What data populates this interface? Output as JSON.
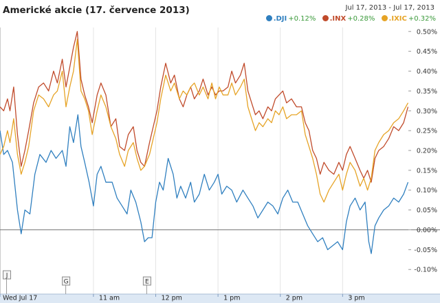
{
  "header": {
    "title": "Americké akcie (17. července 2013)",
    "date_range": "Jul 17, 2013  -  Jul 17, 2013"
  },
  "legend": [
    {
      "symbol": ".DJI",
      "change": "+0.12%",
      "color": "#2f7fbf",
      "icon": "dot-icon"
    },
    {
      "symbol": ".INX",
      "change": "+0.28%",
      "color": "#c04a2a",
      "icon": "dot-icon"
    },
    {
      "symbol": ".IXIC",
      "change": "+0.32%",
      "color": "#e6a325",
      "icon": "dot-icon"
    }
  ],
  "chart_data": {
    "type": "line",
    "title": "Americké akcie (17. července 2013)",
    "xlabel": "",
    "ylabel": "",
    "x_range": [
      9.5,
      16.1
    ],
    "ylim": [
      -0.11,
      0.51
    ],
    "y_ticks": [
      "0.50%",
      "0.45%",
      "0.40%",
      "0.35%",
      "0.30%",
      "0.25%",
      "0.20%",
      "0.15%",
      "0.10%",
      "0.05%",
      "0.00%",
      "-0.05%",
      "-0.10%"
    ],
    "y_tick_values": [
      0.5,
      0.45,
      0.4,
      0.35,
      0.3,
      0.25,
      0.2,
      0.15,
      0.1,
      0.05,
      0.0,
      -0.05,
      -0.1
    ],
    "x_ticks": [
      {
        "label": "Wed Jul 17",
        "x": 9.5
      },
      {
        "label": "11 am",
        "x": 11.0
      },
      {
        "label": "12 pm",
        "x": 12.0
      },
      {
        "label": "1 pm",
        "x": 13.0
      },
      {
        "label": "2 pm",
        "x": 14.0
      },
      {
        "label": "3 pm",
        "x": 15.0
      }
    ],
    "flags": [
      {
        "label": "J",
        "x": 9.55
      },
      {
        "label": "G",
        "x": 10.5
      },
      {
        "label": "E",
        "x": 11.8
      }
    ],
    "series": [
      {
        "name": ".DJI",
        "color": "#2f7fbf",
        "points": [
          [
            9.5,
            0.25
          ],
          [
            9.56,
            0.19
          ],
          [
            9.62,
            0.2
          ],
          [
            9.7,
            0.17
          ],
          [
            9.78,
            0.05
          ],
          [
            9.84,
            -0.01
          ],
          [
            9.9,
            0.05
          ],
          [
            9.98,
            0.04
          ],
          [
            10.06,
            0.14
          ],
          [
            10.14,
            0.19
          ],
          [
            10.24,
            0.17
          ],
          [
            10.32,
            0.2
          ],
          [
            10.4,
            0.18
          ],
          [
            10.5,
            0.2
          ],
          [
            10.56,
            0.16
          ],
          [
            10.62,
            0.26
          ],
          [
            10.68,
            0.22
          ],
          [
            10.75,
            0.29
          ],
          [
            10.8,
            0.21
          ],
          [
            10.86,
            0.17
          ],
          [
            10.93,
            0.12
          ],
          [
            11.0,
            0.06
          ],
          [
            11.06,
            0.14
          ],
          [
            11.12,
            0.16
          ],
          [
            11.2,
            0.12
          ],
          [
            11.3,
            0.12
          ],
          [
            11.38,
            0.08
          ],
          [
            11.46,
            0.06
          ],
          [
            11.54,
            0.04
          ],
          [
            11.6,
            0.1
          ],
          [
            11.68,
            0.07
          ],
          [
            11.76,
            0.02
          ],
          [
            11.82,
            -0.03
          ],
          [
            11.88,
            -0.02
          ],
          [
            11.94,
            -0.02
          ],
          [
            12.0,
            0.07
          ],
          [
            12.06,
            0.12
          ],
          [
            12.12,
            0.1
          ],
          [
            12.2,
            0.18
          ],
          [
            12.28,
            0.14
          ],
          [
            12.34,
            0.08
          ],
          [
            12.4,
            0.11
          ],
          [
            12.48,
            0.08
          ],
          [
            12.56,
            0.12
          ],
          [
            12.62,
            0.07
          ],
          [
            12.7,
            0.09
          ],
          [
            12.78,
            0.14
          ],
          [
            12.86,
            0.1
          ],
          [
            12.94,
            0.12
          ],
          [
            13.0,
            0.14
          ],
          [
            13.06,
            0.09
          ],
          [
            13.14,
            0.11
          ],
          [
            13.22,
            0.1
          ],
          [
            13.3,
            0.07
          ],
          [
            13.4,
            0.1
          ],
          [
            13.48,
            0.08
          ],
          [
            13.56,
            0.06
          ],
          [
            13.64,
            0.03
          ],
          [
            13.72,
            0.05
          ],
          [
            13.8,
            0.07
          ],
          [
            13.88,
            0.06
          ],
          [
            13.96,
            0.04
          ],
          [
            14.04,
            0.08
          ],
          [
            14.12,
            0.1
          ],
          [
            14.2,
            0.07
          ],
          [
            14.28,
            0.07
          ],
          [
            14.36,
            0.04
          ],
          [
            14.44,
            0.01
          ],
          [
            14.52,
            -0.01
          ],
          [
            14.6,
            -0.03
          ],
          [
            14.68,
            -0.02
          ],
          [
            14.76,
            -0.05
          ],
          [
            14.84,
            -0.04
          ],
          [
            14.92,
            -0.03
          ],
          [
            15.0,
            -0.05
          ],
          [
            15.06,
            0.02
          ],
          [
            15.12,
            0.06
          ],
          [
            15.2,
            0.08
          ],
          [
            15.28,
            0.05
          ],
          [
            15.36,
            0.07
          ],
          [
            15.42,
            -0.03
          ],
          [
            15.46,
            -0.06
          ],
          [
            15.52,
            0.01
          ],
          [
            15.58,
            0.03
          ],
          [
            15.66,
            0.05
          ],
          [
            15.74,
            0.06
          ],
          [
            15.82,
            0.08
          ],
          [
            15.9,
            0.07
          ],
          [
            15.98,
            0.09
          ],
          [
            16.05,
            0.12
          ]
        ]
      },
      {
        "name": ".INX",
        "color": "#c04a2a",
        "points": [
          [
            9.5,
            0.31
          ],
          [
            9.56,
            0.3
          ],
          [
            9.62,
            0.33
          ],
          [
            9.66,
            0.3
          ],
          [
            9.72,
            0.36
          ],
          [
            9.78,
            0.24
          ],
          [
            9.84,
            0.16
          ],
          [
            9.9,
            0.2
          ],
          [
            9.96,
            0.25
          ],
          [
            10.04,
            0.32
          ],
          [
            10.12,
            0.36
          ],
          [
            10.2,
            0.37
          ],
          [
            10.28,
            0.35
          ],
          [
            10.36,
            0.4
          ],
          [
            10.42,
            0.37
          ],
          [
            10.5,
            0.43
          ],
          [
            10.56,
            0.36
          ],
          [
            10.62,
            0.41
          ],
          [
            10.68,
            0.46
          ],
          [
            10.74,
            0.5
          ],
          [
            10.8,
            0.38
          ],
          [
            10.86,
            0.34
          ],
          [
            10.92,
            0.31
          ],
          [
            10.98,
            0.27
          ],
          [
            11.06,
            0.34
          ],
          [
            11.12,
            0.37
          ],
          [
            11.2,
            0.34
          ],
          [
            11.28,
            0.26
          ],
          [
            11.36,
            0.28
          ],
          [
            11.42,
            0.21
          ],
          [
            11.5,
            0.2
          ],
          [
            11.56,
            0.24
          ],
          [
            11.64,
            0.26
          ],
          [
            11.7,
            0.2
          ],
          [
            11.76,
            0.17
          ],
          [
            11.82,
            0.16
          ],
          [
            11.9,
            0.22
          ],
          [
            11.96,
            0.26
          ],
          [
            12.02,
            0.3
          ],
          [
            12.08,
            0.36
          ],
          [
            12.16,
            0.42
          ],
          [
            12.24,
            0.37
          ],
          [
            12.3,
            0.39
          ],
          [
            12.38,
            0.33
          ],
          [
            12.44,
            0.31
          ],
          [
            12.5,
            0.34
          ],
          [
            12.56,
            0.36
          ],
          [
            12.62,
            0.33
          ],
          [
            12.7,
            0.35
          ],
          [
            12.76,
            0.38
          ],
          [
            12.84,
            0.34
          ],
          [
            12.9,
            0.36
          ],
          [
            12.96,
            0.34
          ],
          [
            13.02,
            0.35
          ],
          [
            13.08,
            0.35
          ],
          [
            13.16,
            0.36
          ],
          [
            13.22,
            0.4
          ],
          [
            13.28,
            0.37
          ],
          [
            13.36,
            0.39
          ],
          [
            13.42,
            0.42
          ],
          [
            13.48,
            0.35
          ],
          [
            13.54,
            0.32
          ],
          [
            13.6,
            0.29
          ],
          [
            13.66,
            0.3
          ],
          [
            13.72,
            0.28
          ],
          [
            13.8,
            0.31
          ],
          [
            13.86,
            0.3
          ],
          [
            13.92,
            0.33
          ],
          [
            13.98,
            0.34
          ],
          [
            14.04,
            0.35
          ],
          [
            14.1,
            0.32
          ],
          [
            14.18,
            0.33
          ],
          [
            14.26,
            0.31
          ],
          [
            14.34,
            0.31
          ],
          [
            14.4,
            0.27
          ],
          [
            14.46,
            0.25
          ],
          [
            14.52,
            0.2
          ],
          [
            14.58,
            0.18
          ],
          [
            14.64,
            0.14
          ],
          [
            14.7,
            0.17
          ],
          [
            14.78,
            0.15
          ],
          [
            14.86,
            0.14
          ],
          [
            14.94,
            0.17
          ],
          [
            15.0,
            0.15
          ],
          [
            15.06,
            0.19
          ],
          [
            15.12,
            0.21
          ],
          [
            15.2,
            0.18
          ],
          [
            15.28,
            0.15
          ],
          [
            15.34,
            0.13
          ],
          [
            15.4,
            0.15
          ],
          [
            15.46,
            0.12
          ],
          [
            15.52,
            0.18
          ],
          [
            15.58,
            0.2
          ],
          [
            15.66,
            0.21
          ],
          [
            15.74,
            0.23
          ],
          [
            15.82,
            0.26
          ],
          [
            15.9,
            0.25
          ],
          [
            15.98,
            0.27
          ],
          [
            16.05,
            0.31
          ]
        ]
      },
      {
        "name": ".IXIC",
        "color": "#e6a325",
        "points": [
          [
            9.5,
            0.19
          ],
          [
            9.56,
            0.21
          ],
          [
            9.62,
            0.25
          ],
          [
            9.66,
            0.22
          ],
          [
            9.72,
            0.28
          ],
          [
            9.78,
            0.19
          ],
          [
            9.84,
            0.14
          ],
          [
            9.9,
            0.17
          ],
          [
            9.96,
            0.21
          ],
          [
            10.04,
            0.3
          ],
          [
            10.12,
            0.34
          ],
          [
            10.2,
            0.33
          ],
          [
            10.28,
            0.31
          ],
          [
            10.36,
            0.34
          ],
          [
            10.42,
            0.35
          ],
          [
            10.5,
            0.4
          ],
          [
            10.56,
            0.31
          ],
          [
            10.62,
            0.36
          ],
          [
            10.68,
            0.4
          ],
          [
            10.74,
            0.48
          ],
          [
            10.8,
            0.35
          ],
          [
            10.86,
            0.33
          ],
          [
            10.92,
            0.3
          ],
          [
            10.98,
            0.24
          ],
          [
            11.06,
            0.3
          ],
          [
            11.12,
            0.34
          ],
          [
            11.2,
            0.31
          ],
          [
            11.28,
            0.26
          ],
          [
            11.36,
            0.23
          ],
          [
            11.42,
            0.19
          ],
          [
            11.5,
            0.16
          ],
          [
            11.56,
            0.2
          ],
          [
            11.64,
            0.22
          ],
          [
            11.7,
            0.18
          ],
          [
            11.76,
            0.15
          ],
          [
            11.82,
            0.16
          ],
          [
            11.9,
            0.19
          ],
          [
            11.96,
            0.23
          ],
          [
            12.02,
            0.27
          ],
          [
            12.08,
            0.33
          ],
          [
            12.16,
            0.39
          ],
          [
            12.24,
            0.35
          ],
          [
            12.3,
            0.37
          ],
          [
            12.38,
            0.33
          ],
          [
            12.44,
            0.35
          ],
          [
            12.5,
            0.34
          ],
          [
            12.56,
            0.36
          ],
          [
            12.62,
            0.37
          ],
          [
            12.7,
            0.34
          ],
          [
            12.76,
            0.36
          ],
          [
            12.84,
            0.33
          ],
          [
            12.9,
            0.37
          ],
          [
            12.96,
            0.33
          ],
          [
            13.02,
            0.36
          ],
          [
            13.08,
            0.34
          ],
          [
            13.16,
            0.34
          ],
          [
            13.22,
            0.37
          ],
          [
            13.28,
            0.34
          ],
          [
            13.36,
            0.36
          ],
          [
            13.42,
            0.38
          ],
          [
            13.48,
            0.31
          ],
          [
            13.54,
            0.28
          ],
          [
            13.6,
            0.25
          ],
          [
            13.66,
            0.27
          ],
          [
            13.72,
            0.26
          ],
          [
            13.8,
            0.28
          ],
          [
            13.86,
            0.27
          ],
          [
            13.92,
            0.3
          ],
          [
            13.98,
            0.29
          ],
          [
            14.04,
            0.31
          ],
          [
            14.1,
            0.28
          ],
          [
            14.18,
            0.29
          ],
          [
            14.26,
            0.29
          ],
          [
            14.34,
            0.3
          ],
          [
            14.4,
            0.24
          ],
          [
            14.46,
            0.21
          ],
          [
            14.52,
            0.18
          ],
          [
            14.58,
            0.14
          ],
          [
            14.64,
            0.09
          ],
          [
            14.7,
            0.07
          ],
          [
            14.78,
            0.1
          ],
          [
            14.86,
            0.12
          ],
          [
            14.94,
            0.14
          ],
          [
            15.0,
            0.1
          ],
          [
            15.06,
            0.14
          ],
          [
            15.12,
            0.17
          ],
          [
            15.2,
            0.15
          ],
          [
            15.28,
            0.11
          ],
          [
            15.34,
            0.13
          ],
          [
            15.4,
            0.1
          ],
          [
            15.46,
            0.13
          ],
          [
            15.52,
            0.2
          ],
          [
            15.58,
            0.22
          ],
          [
            15.66,
            0.24
          ],
          [
            15.74,
            0.25
          ],
          [
            15.82,
            0.27
          ],
          [
            15.9,
            0.28
          ],
          [
            15.98,
            0.3
          ],
          [
            16.05,
            0.32
          ]
        ]
      }
    ]
  }
}
